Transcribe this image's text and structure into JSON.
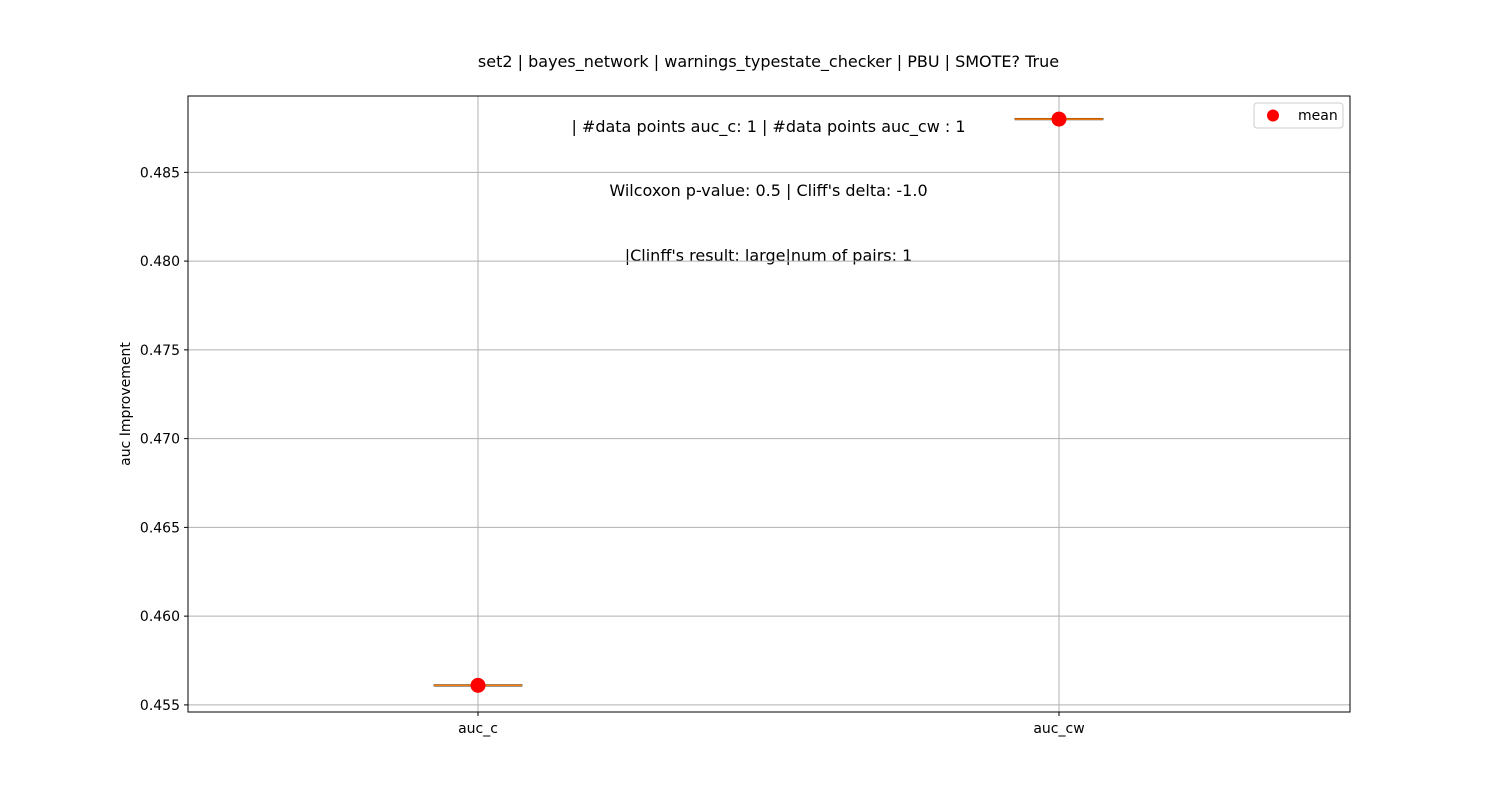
{
  "chart_data": {
    "type": "boxplot",
    "title_lines": [
      "set2 | bayes_network | warnings_typestate_checker | PBU | SMOTE? True",
      "| #data points auc_c: 1 | #data points auc_cw : 1",
      "Wilcoxon p-value: 0.5 | Cliff's delta: -1.0",
      "|Clinff's result: large|num of pairs: 1"
    ],
    "xlabel": "",
    "ylabel": "auc Improvement",
    "categories": [
      "auc_c",
      "auc_cw"
    ],
    "series": [
      {
        "category": "auc_c",
        "values": [
          0.4561
        ],
        "median": 0.4561,
        "mean": 0.4561
      },
      {
        "category": "auc_cw",
        "values": [
          0.488
        ],
        "median": 0.488,
        "mean": 0.488
      }
    ],
    "yticks": [
      0.455,
      0.46,
      0.465,
      0.47,
      0.475,
      0.48,
      0.485
    ],
    "ytick_labels": [
      "0.455",
      "0.460",
      "0.465",
      "0.470",
      "0.475",
      "0.480",
      "0.485"
    ],
    "ylim": [
      0.4546,
      0.4893
    ],
    "grid": true,
    "legend": {
      "position": "top-right",
      "entries": [
        {
          "label": "mean",
          "color": "#ff0000",
          "marker": "circle"
        }
      ]
    },
    "colors": {
      "median": "#ff7f0e",
      "mean": "#ff0000",
      "grid": "#b0b0b0",
      "axes": "#000000"
    }
  }
}
